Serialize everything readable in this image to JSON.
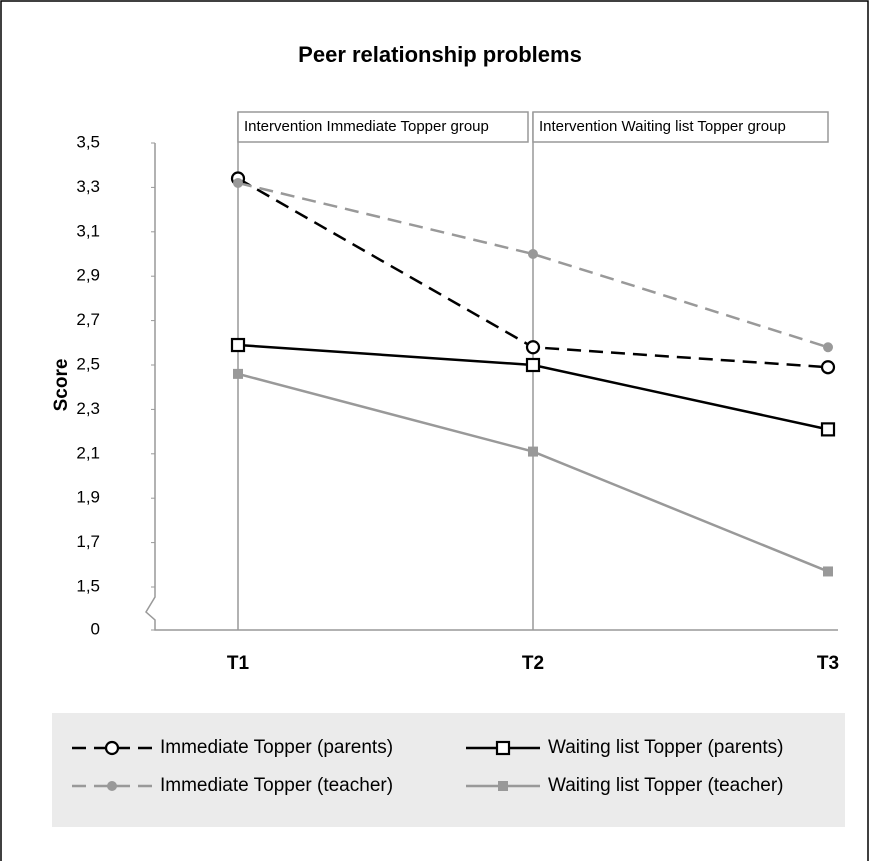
{
  "chart_data": {
    "type": "line",
    "title": "Peer relationship problems",
    "y_label": "Score",
    "annotations": [
      "Intervention Immediate Topper group",
      "Intervention Waiting list Topper group"
    ],
    "categories": [
      "T1",
      "T2",
      "T3"
    ],
    "ylim": [
      0,
      3.5
    ],
    "ybreak": [
      0,
      1.5
    ],
    "yticks": [
      {
        "value": 0,
        "label": "0"
      },
      {
        "value": 1.5,
        "label": "1,5"
      },
      {
        "value": 1.7,
        "label": "1,7"
      },
      {
        "value": 1.9,
        "label": "1,9"
      },
      {
        "value": 2.1,
        "label": "2,1"
      },
      {
        "value": 2.3,
        "label": "2,3"
      },
      {
        "value": 2.5,
        "label": "2,5"
      },
      {
        "value": 2.7,
        "label": "2,7"
      },
      {
        "value": 2.9,
        "label": "2,9"
      },
      {
        "value": 3.1,
        "label": "3,1"
      },
      {
        "value": 3.3,
        "label": "3,3"
      },
      {
        "value": 3.5,
        "label": "3,5"
      }
    ],
    "series": [
      {
        "name": "Immediate Topper (parents)",
        "color": "#000000",
        "dash": true,
        "marker": "circle-open",
        "values": [
          3.34,
          2.58,
          2.49
        ]
      },
      {
        "name": "Waiting list Topper (parents)",
        "color": "#000000",
        "dash": false,
        "marker": "square-open",
        "values": [
          2.59,
          2.5,
          2.21
        ]
      },
      {
        "name": "Immediate Topper (teacher)",
        "color": "#999999",
        "dash": true,
        "marker": "circle-filled",
        "values": [
          3.32,
          3.0,
          2.58
        ]
      },
      {
        "name": "Waiting list Topper (teacher)",
        "color": "#999999",
        "dash": false,
        "marker": "square-filled",
        "values": [
          2.46,
          2.11,
          1.57
        ]
      }
    ]
  }
}
